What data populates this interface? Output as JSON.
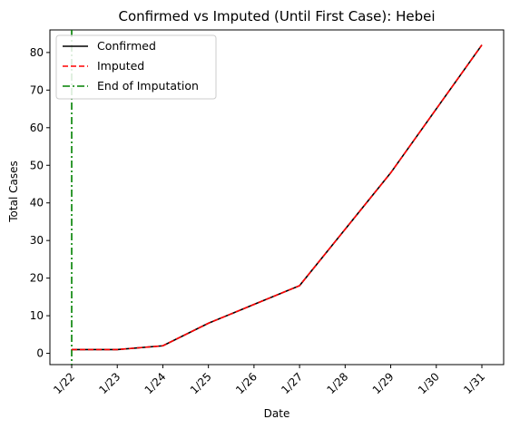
{
  "chart_data": {
    "type": "line",
    "title": "Confirmed vs Imputed (Until First Case): Hebei",
    "xlabel": "Date",
    "ylabel": "Total Cases",
    "categories": [
      "1/22",
      "1/23",
      "1/24",
      "1/25",
      "1/26",
      "1/27",
      "1/28",
      "1/29",
      "1/30",
      "1/31"
    ],
    "ylim": [
      -3,
      86
    ],
    "yticks": [
      0,
      10,
      20,
      30,
      40,
      50,
      60,
      70,
      80
    ],
    "grid": false,
    "legend_position": "top-left",
    "series": [
      {
        "name": "Confirmed",
        "style": "solid",
        "color": "#000000",
        "values": [
          1,
          1,
          2,
          8,
          13,
          18,
          33,
          48,
          65,
          82
        ]
      },
      {
        "name": "Imputed",
        "style": "dashed",
        "color": "#ff0000",
        "values": [
          1,
          1,
          2,
          8,
          13,
          18,
          33,
          48,
          65,
          82
        ]
      }
    ],
    "vline": {
      "name": "End of Imputation",
      "style": "dashdot",
      "color": "#008000",
      "x": "1/22"
    }
  }
}
